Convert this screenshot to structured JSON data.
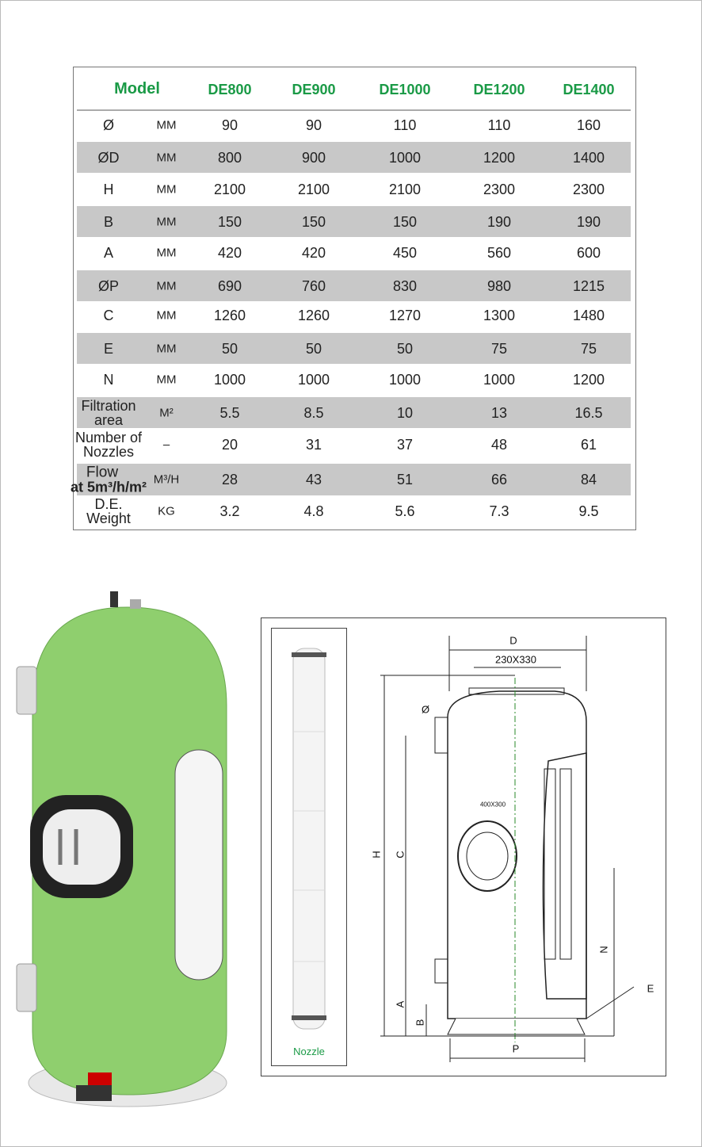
{
  "table": {
    "header": {
      "model_label": "Model",
      "models": [
        "DE800",
        "DE900",
        "DE1000",
        "DE1200",
        "DE1400"
      ]
    },
    "rows": [
      {
        "label": "Ø",
        "unit": "MM",
        "values": [
          "90",
          "90",
          "110",
          "110",
          "160"
        ]
      },
      {
        "label": "ØD",
        "unit": "MM",
        "values": [
          "800",
          "900",
          "1000",
          "1200",
          "1400"
        ]
      },
      {
        "label": "H",
        "unit": "MM",
        "values": [
          "2100",
          "2100",
          "2100",
          "2300",
          "2300"
        ]
      },
      {
        "label": "B",
        "unit": "MM",
        "values": [
          "150",
          "150",
          "150",
          "190",
          "190"
        ]
      },
      {
        "label": "A",
        "unit": "MM",
        "values": [
          "420",
          "420",
          "450",
          "560",
          "600"
        ]
      },
      {
        "label": "ØP",
        "unit": "MM",
        "values": [
          "690",
          "760",
          "830",
          "980",
          "1215"
        ]
      },
      {
        "label": "C",
        "unit": "MM",
        "values": [
          "1260",
          "1260",
          "1270",
          "1300",
          "1480"
        ]
      },
      {
        "label": "E",
        "unit": "MM",
        "values": [
          "50",
          "50",
          "50",
          "75",
          "75"
        ]
      },
      {
        "label": "N",
        "unit": "MM",
        "values": [
          "1000",
          "1000",
          "1000",
          "1000",
          "1200"
        ]
      },
      {
        "label": "Filtration area",
        "unit": "M²",
        "values": [
          "5.5",
          "8.5",
          "10",
          "13",
          "16.5"
        ]
      },
      {
        "label": "Number of Nozzles",
        "unit": "–",
        "values": [
          "20",
          "31",
          "37",
          "48",
          "61"
        ]
      },
      {
        "label": "Flow",
        "sublabel": "at 5m³/h/m²",
        "unit": "M³/H",
        "values": [
          "28",
          "43",
          "51",
          "66",
          "84"
        ]
      },
      {
        "label": "D.E. Weight",
        "unit": "KG",
        "values": [
          "3.2",
          "4.8",
          "5.6",
          "7.3",
          "9.5"
        ]
      }
    ]
  },
  "colors": {
    "accent": "#1a9a46",
    "row_shade": "#c8c8c8",
    "tank_green": "#8fcf6e"
  },
  "diagram": {
    "nozzle_caption": "Nozzle",
    "labels": {
      "D": "D",
      "top_opening": "230X330",
      "phi": "Ø",
      "manhole": "400X300",
      "H": "H",
      "C": "C",
      "A": "A",
      "B": "B",
      "N": "N",
      "E": "E",
      "P": "P"
    }
  }
}
